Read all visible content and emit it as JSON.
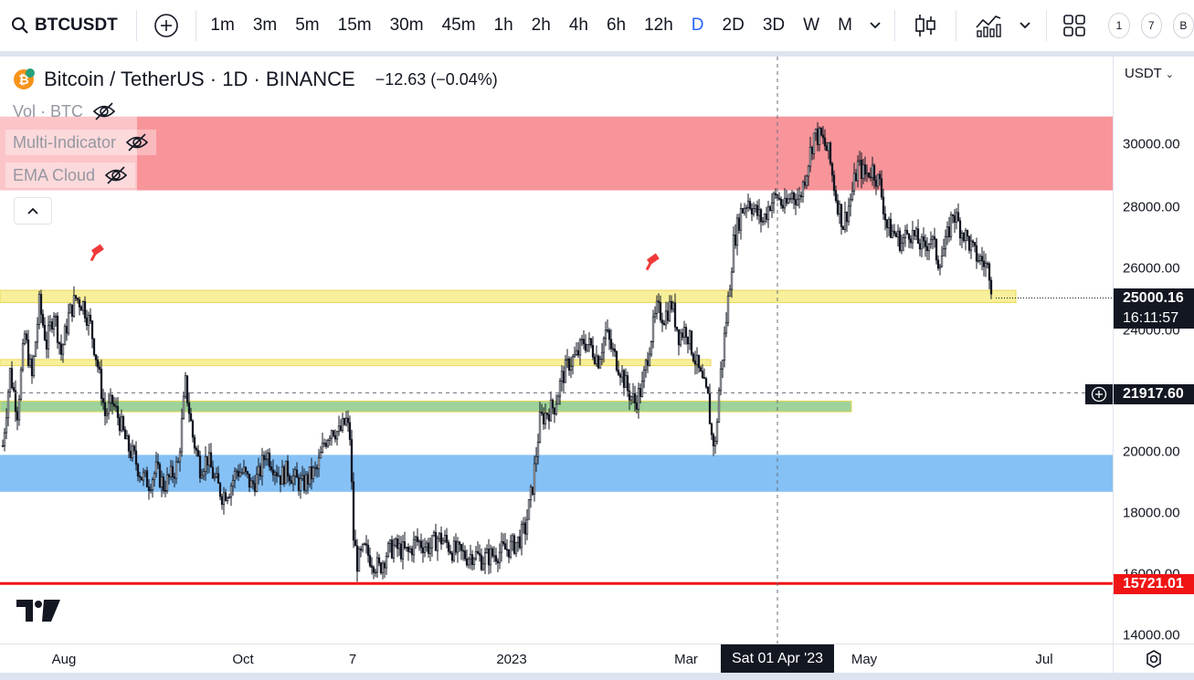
{
  "toolbar": {
    "symbol": "BTCUSDT",
    "timeframes": [
      "1m",
      "3m",
      "5m",
      "15m",
      "30m",
      "45m",
      "1h",
      "2h",
      "4h",
      "6h",
      "12h",
      "D",
      "2D",
      "3D",
      "W",
      "M"
    ],
    "active_timeframe": "D",
    "circles": [
      "1",
      "7",
      "B"
    ]
  },
  "legend": {
    "title": "Bitcoin / TetherUS · 1D · BINANCE",
    "change": "−12.63 (−0.04%)",
    "indicators": [
      "Vol · BTC",
      "Multi-Indicator",
      "EMA Cloud"
    ]
  },
  "price_axis": {
    "currency": "USDT",
    "ticks": [
      "30000.00",
      "28000.00",
      "26000.00",
      "24000.00",
      "20000.00",
      "18000.00",
      "16000.00",
      "14000.00"
    ],
    "last_price": "25000.16",
    "countdown": "16:11:57",
    "crosshair_price": "21917.60",
    "red_level": "15721.01"
  },
  "time_axis": {
    "ticks": [
      "Aug",
      "Oct",
      "7",
      "2023",
      "Mar",
      "May",
      "Jul"
    ],
    "crosshair_date": "Sat 01 Apr '23"
  },
  "colors": {
    "up": "#131722",
    "down": "#131722",
    "red_zone": "#f7959a",
    "blue_zone": "#85c1f5",
    "yellow": "#f8ef9b",
    "green": "#9ed39a",
    "red_line": "#f01414",
    "accent": "#2962ff"
  },
  "chart_data": {
    "type": "candlestick",
    "ylim": [
      14000,
      32000
    ],
    "zones": [
      {
        "kind": "resistance",
        "from": 28500,
        "to": 30900,
        "color": "#f7959a"
      },
      {
        "kind": "support",
        "from": 18700,
        "to": 19900,
        "color": "#85c1f5"
      },
      {
        "kind": "level",
        "from": 24850,
        "to": 25250,
        "color": "#f8ef9b"
      },
      {
        "kind": "level",
        "from": 22800,
        "to": 23000,
        "color": "#f8ef9b"
      },
      {
        "kind": "level",
        "from": 21300,
        "to": 21650,
        "color": "#9ed39a"
      }
    ],
    "hline": 15721.01,
    "path": [
      [
        0,
        20200
      ],
      [
        4,
        22600
      ],
      [
        8,
        21300
      ],
      [
        12,
        23800
      ],
      [
        16,
        22400
      ],
      [
        20,
        24800
      ],
      [
        24,
        23500
      ],
      [
        28,
        24600
      ],
      [
        32,
        23200
      ],
      [
        36,
        24400
      ],
      [
        40,
        25000
      ],
      [
        44,
        24800
      ],
      [
        48,
        24100
      ],
      [
        52,
        22800
      ],
      [
        56,
        21200
      ],
      [
        60,
        21600
      ],
      [
        64,
        21000
      ],
      [
        68,
        20200
      ],
      [
        72,
        19800
      ],
      [
        76,
        19200
      ],
      [
        80,
        19000
      ],
      [
        84,
        19400
      ],
      [
        88,
        18900
      ],
      [
        92,
        19200
      ],
      [
        96,
        19600
      ],
      [
        100,
        22200
      ],
      [
        104,
        20500
      ],
      [
        108,
        19500
      ],
      [
        112,
        19800
      ],
      [
        116,
        19100
      ],
      [
        120,
        18600
      ],
      [
        124,
        18800
      ],
      [
        128,
        19400
      ],
      [
        132,
        19300
      ],
      [
        136,
        18900
      ],
      [
        140,
        19200
      ],
      [
        144,
        20000
      ],
      [
        148,
        19600
      ],
      [
        152,
        19200
      ],
      [
        156,
        19400
      ],
      [
        160,
        19100
      ],
      [
        164,
        18900
      ],
      [
        168,
        19200
      ],
      [
        172,
        19400
      ],
      [
        176,
        20300
      ],
      [
        180,
        20800
      ],
      [
        184,
        20600
      ],
      [
        188,
        21000
      ],
      [
        190,
        20500
      ],
      [
        192,
        17200
      ],
      [
        194,
        16400
      ],
      [
        198,
        16800
      ],
      [
        202,
        16500
      ],
      [
        206,
        16200
      ],
      [
        210,
        16700
      ],
      [
        214,
        16900
      ],
      [
        218,
        16800
      ],
      [
        222,
        16700
      ],
      [
        226,
        17100
      ],
      [
        230,
        17000
      ],
      [
        234,
        16900
      ],
      [
        238,
        17200
      ],
      [
        242,
        17100
      ],
      [
        246,
        16800
      ],
      [
        250,
        16700
      ],
      [
        254,
        16600
      ],
      [
        258,
        16700
      ],
      [
        262,
        16500
      ],
      [
        266,
        16600
      ],
      [
        270,
        16700
      ],
      [
        274,
        16800
      ],
      [
        278,
        16900
      ],
      [
        282,
        17100
      ],
      [
        286,
        17500
      ],
      [
        290,
        18900
      ],
      [
        294,
        21000
      ],
      [
        298,
        21300
      ],
      [
        302,
        21500
      ],
      [
        306,
        22400
      ],
      [
        310,
        22900
      ],
      [
        314,
        23100
      ],
      [
        318,
        23600
      ],
      [
        322,
        23400
      ],
      [
        326,
        23000
      ],
      [
        330,
        23900
      ],
      [
        334,
        23200
      ],
      [
        338,
        22700
      ],
      [
        342,
        22000
      ],
      [
        346,
        21600
      ],
      [
        350,
        22100
      ],
      [
        354,
        23500
      ],
      [
        358,
        24600
      ],
      [
        362,
        24400
      ],
      [
        366,
        24800
      ],
      [
        370,
        23800
      ],
      [
        374,
        24000
      ],
      [
        378,
        23200
      ],
      [
        382,
        22400
      ],
      [
        386,
        21700
      ],
      [
        388,
        20500
      ],
      [
        390,
        20200
      ],
      [
        392,
        22000
      ],
      [
        396,
        24300
      ],
      [
        400,
        26800
      ],
      [
        404,
        27800
      ],
      [
        408,
        28200
      ],
      [
        412,
        27800
      ],
      [
        416,
        27500
      ],
      [
        420,
        28100
      ],
      [
        424,
        28300
      ],
      [
        428,
        27900
      ],
      [
        432,
        28400
      ],
      [
        436,
        28200
      ],
      [
        440,
        29200
      ],
      [
        444,
        30300
      ],
      [
        448,
        30200
      ],
      [
        452,
        29700
      ],
      [
        456,
        28300
      ],
      [
        460,
        27400
      ],
      [
        464,
        28200
      ],
      [
        468,
        29300
      ],
      [
        472,
        29000
      ],
      [
        476,
        29200
      ],
      [
        480,
        28700
      ],
      [
        484,
        27300
      ],
      [
        488,
        27100
      ],
      [
        492,
        26800
      ],
      [
        496,
        27200
      ],
      [
        500,
        26900
      ],
      [
        504,
        26600
      ],
      [
        508,
        27000
      ],
      [
        512,
        26200
      ],
      [
        516,
        26700
      ],
      [
        520,
        27800
      ],
      [
        524,
        27300
      ],
      [
        528,
        26900
      ],
      [
        532,
        26400
      ],
      [
        536,
        26200
      ],
      [
        540,
        25900
      ],
      [
        542,
        25000
      ]
    ],
    "x_start": 3,
    "x_step": 2.0,
    "markers": [
      {
        "x": 108,
        "y": 25800
      },
      {
        "x": 716,
        "y": 25500
      }
    ]
  }
}
